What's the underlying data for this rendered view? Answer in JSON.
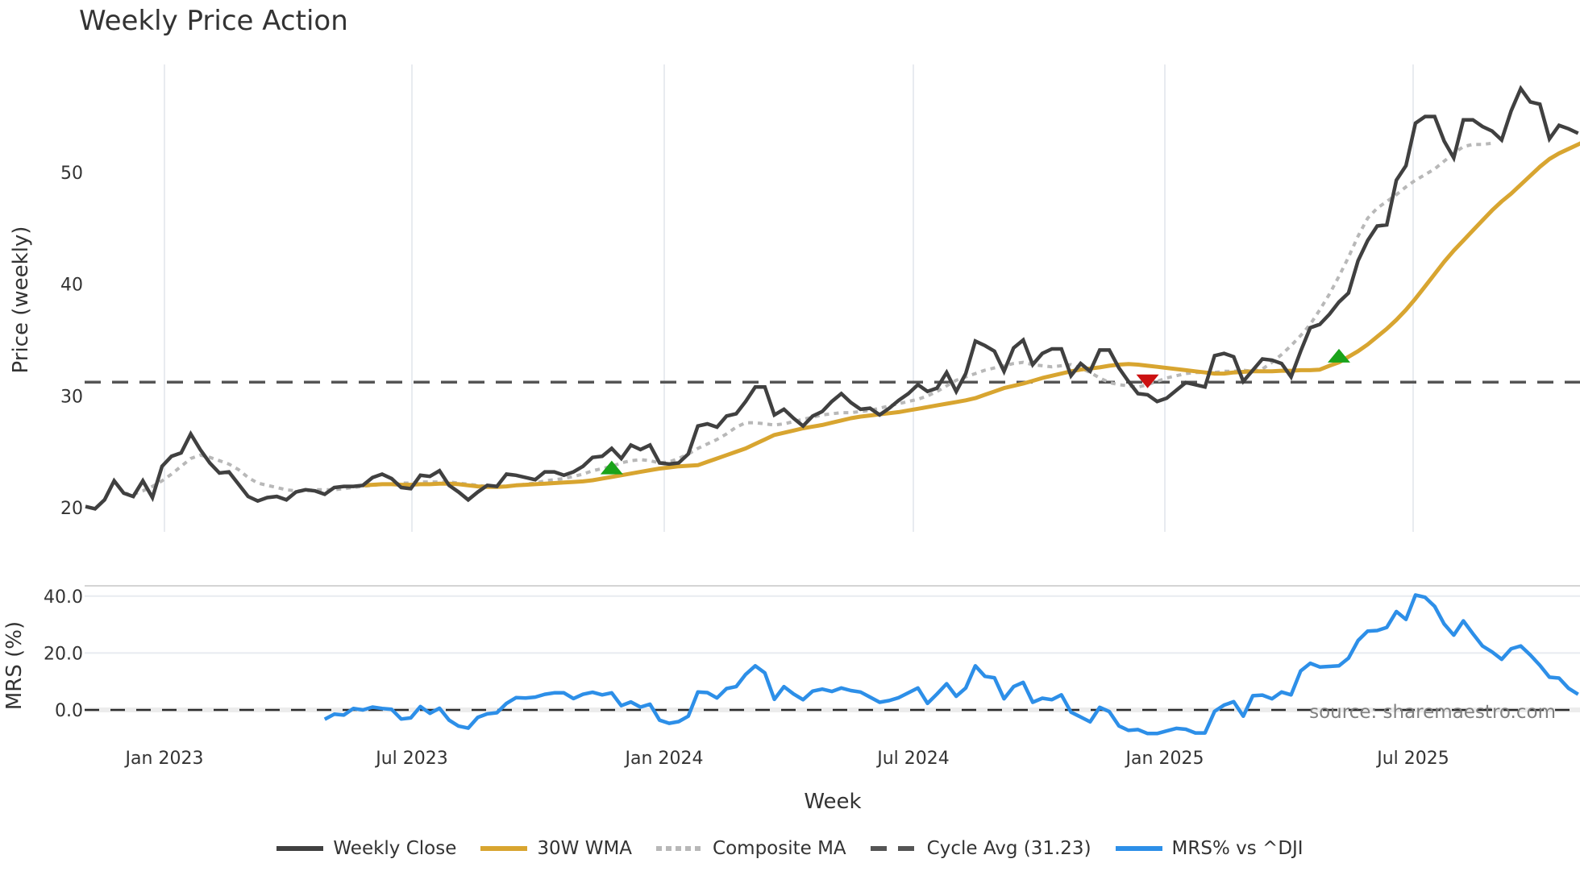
{
  "title": "Weekly Price Action",
  "colors": {
    "weekly_close": "#404040",
    "wma": "#d8a530",
    "composite": "#b8b8b8",
    "cycle_avg": "#555555",
    "mrs": "#2d8fe8",
    "buy_marker": "#1aa31a",
    "sell_marker": "#cc1111",
    "grid": "#e8ebf0"
  },
  "axes": {
    "price_ylabel": "Price (weekly)",
    "mrs_ylabel": "MRS (%)",
    "xlabel": "Week",
    "price_yticks": [
      "20",
      "30",
      "40",
      "50"
    ],
    "mrs_yticks": [
      "0.0",
      "20.0",
      "40.0"
    ],
    "xticks": [
      "Jan 2023",
      "Jul 2023",
      "Jan 2024",
      "Jul 2024",
      "Jan 2025",
      "Jul 2025"
    ]
  },
  "source_label": "source: sharemaestro.com",
  "legend": [
    {
      "label": "Weekly Close",
      "style": "solid-dark"
    },
    {
      "label": "30W WMA",
      "style": "solid-gold"
    },
    {
      "label": "Composite MA",
      "style": "dotted-grey"
    },
    {
      "label": "Cycle Avg (31.23)",
      "style": "dashed-dark"
    },
    {
      "label": "MRS% vs ^DJI",
      "style": "solid-blue"
    }
  ],
  "chart_data": [
    {
      "type": "line",
      "title": "Weekly Price Action",
      "xlabel": "Week",
      "ylabel": "Price (weekly)",
      "ylim": [
        18,
        59
      ],
      "x_start": "2022-11-07",
      "x_step": "1 week",
      "x_ticks": [
        "Jan 2023",
        "Jul 2023",
        "Jan 2024",
        "Jul 2024",
        "Jan 2025",
        "Jul 2025"
      ],
      "y_ticks": [
        20,
        30,
        40,
        50
      ],
      "grid": "vertical",
      "legend_position": "bottom",
      "series": [
        {
          "name": "Weekly Close",
          "values": [
            20.1,
            19.9,
            20.7,
            22.4,
            21.3,
            21.0,
            22.4,
            20.9,
            23.7,
            24.6,
            24.9,
            26.6,
            25.2,
            24.0,
            23.1,
            23.2,
            22.1,
            21.0,
            20.6,
            20.9,
            21.0,
            20.7,
            21.4,
            21.6,
            21.5,
            21.2,
            21.8,
            21.9,
            21.9,
            22.0,
            22.7,
            23.0,
            22.6,
            21.8,
            21.7,
            22.9,
            22.8,
            23.3,
            22.0,
            21.4,
            20.7,
            21.4,
            22.0,
            21.9,
            23.0,
            22.9,
            22.7,
            22.5,
            23.2,
            23.2,
            22.9,
            23.2,
            23.7,
            24.5,
            24.6,
            25.3,
            24.4,
            25.6,
            25.2,
            25.6,
            24.0,
            23.9,
            24.0,
            24.8,
            27.3,
            27.5,
            27.2,
            28.2,
            28.4,
            29.5,
            30.8,
            30.8,
            28.3,
            28.8,
            28.0,
            27.3,
            28.2,
            28.6,
            29.5,
            30.2,
            29.4,
            28.8,
            28.9,
            28.3,
            28.9,
            29.6,
            30.2,
            31.0,
            30.4,
            30.7,
            32.1,
            30.4,
            32.0,
            34.9,
            34.5,
            34.0,
            32.2,
            34.3,
            35.0,
            32.8,
            33.8,
            34.2,
            34.2,
            31.8,
            32.9,
            32.2,
            34.1,
            34.1,
            32.5,
            31.3,
            30.2,
            30.1,
            29.5,
            29.8,
            30.5,
            31.2,
            31.0,
            30.8,
            33.6,
            33.8,
            33.5,
            31.3,
            32.3,
            33.3,
            33.2,
            32.9,
            31.7,
            34.0,
            36.1,
            36.4,
            37.3,
            38.4,
            39.2,
            42.1,
            43.9,
            45.2,
            45.3,
            49.3,
            50.6,
            54.4,
            55.0,
            55.0,
            52.8,
            51.3,
            54.7,
            54.7,
            54.1,
            53.7,
            52.9,
            55.5,
            57.5,
            56.3,
            56.1,
            53.0,
            54.2,
            53.9,
            53.5
          ]
        },
        {
          "name": "30W WMA",
          "start_index": 29,
          "values": [
            22.0,
            22.05,
            22.1,
            22.1,
            22.05,
            22.05,
            22.1,
            22.1,
            22.15,
            22.15,
            22.1,
            22.0,
            21.9,
            21.85,
            21.85,
            21.9,
            22.0,
            22.05,
            22.1,
            22.15,
            22.2,
            22.25,
            22.3,
            22.35,
            22.45,
            22.6,
            22.75,
            22.9,
            23.05,
            23.2,
            23.35,
            23.5,
            23.6,
            23.7,
            23.75,
            23.8,
            24.1,
            24.4,
            24.7,
            25.0,
            25.3,
            25.7,
            26.1,
            26.5,
            26.7,
            26.9,
            27.1,
            27.25,
            27.4,
            27.6,
            27.8,
            28.0,
            28.15,
            28.25,
            28.35,
            28.45,
            28.55,
            28.7,
            28.85,
            29.0,
            29.15,
            29.3,
            29.45,
            29.6,
            29.8,
            30.1,
            30.4,
            30.7,
            30.9,
            31.1,
            31.35,
            31.6,
            31.8,
            32.0,
            32.2,
            32.35,
            32.45,
            32.55,
            32.7,
            32.8,
            32.85,
            32.8,
            32.7,
            32.6,
            32.5,
            32.4,
            32.3,
            32.2,
            32.1,
            32.0,
            32.0,
            32.1,
            32.15,
            32.2,
            32.2,
            32.2,
            32.25,
            32.25,
            32.3,
            32.3,
            32.35,
            32.7,
            33.0,
            33.5,
            34.0,
            34.6,
            35.3,
            36.0,
            36.8,
            37.7,
            38.7,
            39.8,
            40.9,
            42.0,
            43.0,
            43.9,
            44.8,
            45.7,
            46.6,
            47.4,
            48.1,
            48.9,
            49.7,
            50.5,
            51.2,
            51.7,
            52.1,
            52.5,
            52.9
          ]
        },
        {
          "name": "Composite MA",
          "start_index": 4,
          "values": [
            21.3,
            21.2,
            21.5,
            21.9,
            22.4,
            23.0,
            23.7,
            24.4,
            24.7,
            24.5,
            24.2,
            23.9,
            23.4,
            22.7,
            22.2,
            22.0,
            21.8,
            21.6,
            21.5,
            21.5,
            21.6,
            21.6,
            21.6,
            21.7,
            21.8,
            21.9,
            22.0,
            22.1,
            22.1,
            22.2,
            22.2,
            22.3,
            22.3,
            22.3,
            22.3,
            22.2,
            22.1,
            22.0,
            21.9,
            21.9,
            21.9,
            22.0,
            22.1,
            22.2,
            22.4,
            22.5,
            22.6,
            22.8,
            23.0,
            23.3,
            23.5,
            23.7,
            24.0,
            24.2,
            24.3,
            24.2,
            24.0,
            24.1,
            24.4,
            24.8,
            25.3,
            25.7,
            26.1,
            26.6,
            27.2,
            27.6,
            27.6,
            27.5,
            27.4,
            27.5,
            27.7,
            27.9,
            28.1,
            28.3,
            28.4,
            28.5,
            28.5,
            28.6,
            28.7,
            28.9,
            29.1,
            29.3,
            29.5,
            29.7,
            30.0,
            30.4,
            30.9,
            31.4,
            31.7,
            32.0,
            32.3,
            32.5,
            32.7,
            32.9,
            33.0,
            32.8,
            32.7,
            32.6,
            32.7,
            32.8,
            32.5,
            32.1,
            31.6,
            31.2,
            31.0,
            30.9,
            30.8,
            31.0,
            31.3,
            31.6,
            31.8,
            32.0,
            32.1,
            32.1,
            32.1,
            32.2,
            32.2,
            32.3,
            32.2,
            32.4,
            33.0,
            33.7,
            34.5,
            35.4,
            36.4,
            37.7,
            39.1,
            40.7,
            42.4,
            44.3,
            45.9,
            46.8,
            47.4,
            48.0,
            48.7,
            49.3,
            49.8,
            50.3,
            51.0,
            51.7,
            52.3,
            52.5,
            52.5,
            52.6
          ]
        },
        {
          "name": "Cycle Avg (31.23)",
          "constant": 31.23
        }
      ],
      "markers": [
        {
          "type": "buy",
          "shape": "triangle-up",
          "index": 55,
          "value": 23.6
        },
        {
          "type": "sell",
          "shape": "triangle-down",
          "index": 111,
          "value": 31.3
        },
        {
          "type": "buy",
          "shape": "triangle-up",
          "index": 131,
          "value": 33.6
        }
      ]
    },
    {
      "type": "line",
      "title": "",
      "xlabel": "Week",
      "ylabel": "MRS (%)",
      "ylim": [
        -13,
        44
      ],
      "y_ticks": [
        0.0,
        20.0,
        40.0
      ],
      "reference_line": 0,
      "series": [
        {
          "name": "MRS% vs ^DJI",
          "start_index": 25,
          "values": [
            -3.3,
            -1.5,
            -1.8,
            0.5,
            0,
            1,
            0.5,
            0.2,
            -3.2,
            -2.8,
            1.2,
            -1.2,
            0.6,
            -3.6,
            -5.7,
            -6.4,
            -2.6,
            -1.4,
            -1,
            2.3,
            4.3,
            4.2,
            4.5,
            5.5,
            6,
            6,
            4,
            5.5,
            6.2,
            5.3,
            6,
            1.5,
            2.8,
            1,
            2,
            -3.6,
            -4.7,
            -4.1,
            -2.2,
            6.3,
            6.1,
            4.2,
            7.5,
            8.2,
            12.5,
            15.5,
            13,
            3.7,
            8.2,
            5.6,
            3.6,
            6.6,
            7.3,
            6.5,
            7.7,
            6.8,
            6.3,
            4.5,
            2.7,
            3.3,
            4.3,
            6.0,
            7.7,
            2.3,
            5.6,
            9.2,
            4.8,
            7.7,
            15.5,
            11.8,
            11.3,
            3.9,
            8.2,
            9.7,
            2.7,
            4.1,
            3.6,
            5.3,
            -0.8,
            -2.5,
            -4.2,
            0.9,
            -0.6,
            -5.6,
            -7.2,
            -6.9,
            -8.3,
            -8.3,
            -7.4,
            -6.5,
            -6.8,
            -8.1,
            -8.1,
            -0.5,
            1.7,
            2.9,
            -2.2,
            5.0,
            5.2,
            3.9,
            6.3,
            5.3,
            13.7,
            16.4,
            15.1,
            15.3,
            15.5,
            18.2,
            24.4,
            27.7,
            27.9,
            29.0,
            34.6,
            31.8,
            40.4,
            39.6,
            36.4,
            30.2,
            26.3,
            31.3,
            26.8,
            22.5,
            20.4,
            17.8,
            21.5,
            22.5,
            19.3,
            15.7,
            11.5,
            11.2,
            7.6,
            5.5
          ]
        }
      ]
    }
  ]
}
